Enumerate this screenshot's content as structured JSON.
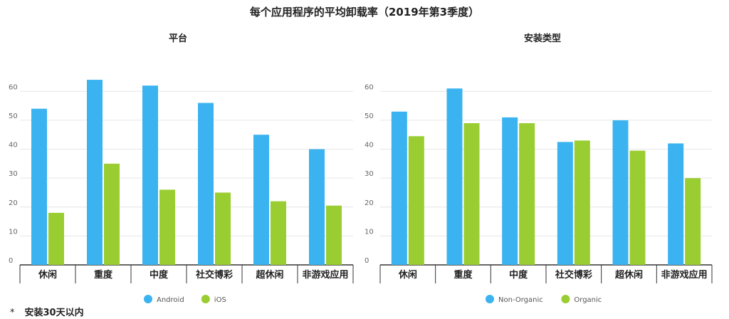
{
  "title": "每个应用程序的平均卸载率（2019年第3季度）",
  "footnote": {
    "marker": "*",
    "text": "安装30天以内"
  },
  "colors": {
    "blue": "#3bb3f0",
    "green": "#9acd32",
    "grid": "#e6e6e6",
    "axis": "#333333"
  },
  "chart_data": [
    {
      "type": "bar",
      "title": "平台",
      "categories": [
        "休闲",
        "重度",
        "中度",
        "社交博彩",
        "超休闲",
        "非游戏应用"
      ],
      "series": [
        {
          "name": "Android",
          "color": "#3bb3f0",
          "values": [
            54,
            64,
            62,
            56,
            45,
            40
          ]
        },
        {
          "name": "iOS",
          "color": "#9acd32",
          "values": [
            18,
            35,
            26,
            25,
            22,
            20.5
          ]
        }
      ],
      "ylim": [
        0,
        65
      ],
      "yticks": [
        0,
        10,
        20,
        30,
        40,
        50,
        60
      ],
      "grid": true,
      "legend": "bottom-center"
    },
    {
      "type": "bar",
      "title": "安装类型",
      "categories": [
        "休闲",
        "重度",
        "中度",
        "社交博彩",
        "超休闲",
        "非游戏应用"
      ],
      "series": [
        {
          "name": "Non-Organic",
          "color": "#3bb3f0",
          "values": [
            53,
            61,
            51,
            42.5,
            50,
            42
          ]
        },
        {
          "name": "Organic",
          "color": "#9acd32",
          "values": [
            44.5,
            49,
            49,
            43,
            39.5,
            30
          ]
        }
      ],
      "ylim": [
        0,
        65
      ],
      "yticks": [
        0,
        10,
        20,
        30,
        40,
        50,
        60
      ],
      "grid": true,
      "legend": "bottom-center"
    }
  ]
}
